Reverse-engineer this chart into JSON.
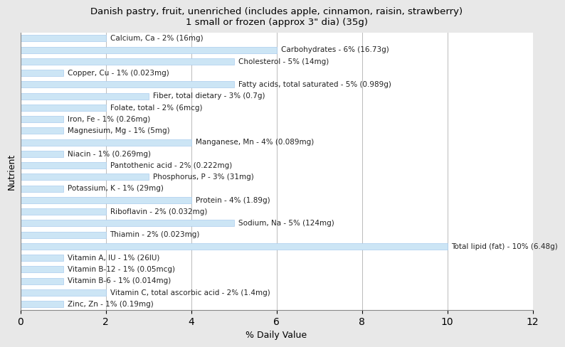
{
  "title": "Danish pastry, fruit, unenriched (includes apple, cinnamon, raisin, strawberry)\n1 small or frozen (approx 3\" dia) (35g)",
  "xlabel": "% Daily Value",
  "ylabel": "Nutrient",
  "xlim": [
    0,
    12
  ],
  "xticks": [
    0,
    2,
    4,
    6,
    8,
    10,
    12
  ],
  "bar_color": "#cce5f5",
  "bar_edge_color": "#aaccee",
  "background_color": "#e8e8e8",
  "plot_bg_color": "#ffffff",
  "label_fontsize": 7.5,
  "title_fontsize": 9.5,
  "nutrients": [
    {
      "label": "Calcium, Ca - 2% (16mg)",
      "value": 2
    },
    {
      "label": "Carbohydrates - 6% (16.73g)",
      "value": 6
    },
    {
      "label": "Cholesterol - 5% (14mg)",
      "value": 5
    },
    {
      "label": "Copper, Cu - 1% (0.023mg)",
      "value": 1
    },
    {
      "label": "Fatty acids, total saturated - 5% (0.989g)",
      "value": 5
    },
    {
      "label": "Fiber, total dietary - 3% (0.7g)",
      "value": 3
    },
    {
      "label": "Folate, total - 2% (6mcg)",
      "value": 2
    },
    {
      "label": "Iron, Fe - 1% (0.26mg)",
      "value": 1
    },
    {
      "label": "Magnesium, Mg - 1% (5mg)",
      "value": 1
    },
    {
      "label": "Manganese, Mn - 4% (0.089mg)",
      "value": 4
    },
    {
      "label": "Niacin - 1% (0.269mg)",
      "value": 1
    },
    {
      "label": "Pantothenic acid - 2% (0.222mg)",
      "value": 2
    },
    {
      "label": "Phosphorus, P - 3% (31mg)",
      "value": 3
    },
    {
      "label": "Potassium, K - 1% (29mg)",
      "value": 1
    },
    {
      "label": "Protein - 4% (1.89g)",
      "value": 4
    },
    {
      "label": "Riboflavin - 2% (0.032mg)",
      "value": 2
    },
    {
      "label": "Sodium, Na - 5% (124mg)",
      "value": 5
    },
    {
      "label": "Thiamin - 2% (0.023mg)",
      "value": 2
    },
    {
      "label": "Total lipid (fat) - 10% (6.48g)",
      "value": 10
    },
    {
      "label": "Vitamin A, IU - 1% (26IU)",
      "value": 1
    },
    {
      "label": "Vitamin B-12 - 1% (0.05mcg)",
      "value": 1
    },
    {
      "label": "Vitamin B-6 - 1% (0.014mg)",
      "value": 1
    },
    {
      "label": "Vitamin C, total ascorbic acid - 2% (1.4mg)",
      "value": 2
    },
    {
      "label": "Zinc, Zn - 1% (0.19mg)",
      "value": 1
    }
  ]
}
